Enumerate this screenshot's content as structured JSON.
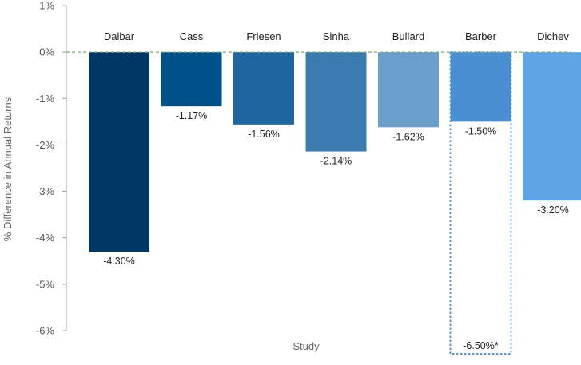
{
  "chart_data": {
    "type": "bar",
    "xlabel": "Study",
    "ylabel": "% Difference in Annual Returns",
    "ylim": [
      -6,
      1
    ],
    "yticks": [
      1,
      0,
      -1,
      -2,
      -3,
      -4,
      -5,
      -6
    ],
    "ytick_labels": [
      "1%",
      "0%",
      "-1%",
      "-2%",
      "-3%",
      "-4%",
      "-5%",
      "-6%"
    ],
    "categories": [
      "Dalbar",
      "Cass",
      "Friesen",
      "Sinha",
      "Bullard",
      "Barber",
      "Dichev"
    ],
    "values": [
      -4.3,
      -1.17,
      -1.56,
      -2.14,
      -1.62,
      -1.5,
      -3.2
    ],
    "value_labels": [
      "-4.30%",
      "-1.17%",
      "-1.56%",
      "-2.14%",
      "-1.62%",
      "-1.50%",
      "-3.20%"
    ],
    "colors": [
      "#003865",
      "#00508a",
      "#1f65a0",
      "#3b7bb0",
      "#6a9fcc",
      "#4a8fd1",
      "#5ea6e6"
    ],
    "zero_line_color": "#7aa97a",
    "alternate": {
      "category": "Barber",
      "value": -6.5,
      "label": "-6.50%*",
      "style": "dotted-outline",
      "color": "#4a8fd1"
    },
    "grid": false,
    "legend": "none"
  }
}
